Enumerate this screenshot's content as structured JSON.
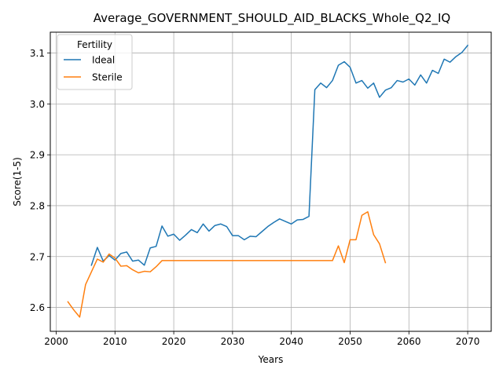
{
  "chart_data": {
    "type": "line",
    "title": "Average_GOVERNMENT_SHOULD_AID_BLACKS_Whole_Q2_IQ",
    "xlabel": "Years",
    "ylabel": "Score(1-5)",
    "xlim": [
      1999,
      2074
    ],
    "ylim": [
      2.553,
      3.141
    ],
    "xticks": [
      2000,
      2010,
      2020,
      2030,
      2040,
      2050,
      2060,
      2070
    ],
    "yticks": [
      2.6,
      2.7,
      2.8,
      2.9,
      3.0,
      3.1
    ],
    "xtick_labels": [
      "2000",
      "2010",
      "2020",
      "2030",
      "2040",
      "2050",
      "2060",
      "2070"
    ],
    "ytick_labels": [
      "2.6",
      "2.7",
      "2.8",
      "2.9",
      "3.0",
      "3.1"
    ],
    "grid": true,
    "legend": {
      "title": "Fertility",
      "placement": "top-left"
    },
    "series": [
      {
        "name": "Ideal",
        "color": "#1f77b4",
        "x": [
          2006,
          2007,
          2008,
          2009,
          2010,
          2011,
          2012,
          2013,
          2014,
          2015,
          2016,
          2017,
          2018,
          2019,
          2020,
          2021,
          2022,
          2023,
          2024,
          2025,
          2026,
          2027,
          2028,
          2029,
          2030,
          2031,
          2032,
          2033,
          2034,
          2035,
          2036,
          2037,
          2038,
          2039,
          2040,
          2041,
          2042,
          2043,
          2044,
          2045,
          2046,
          2047,
          2048,
          2049,
          2050,
          2051,
          2052,
          2053,
          2054,
          2055,
          2056,
          2057,
          2058,
          2059,
          2060,
          2061,
          2062,
          2063,
          2064,
          2065,
          2066,
          2067,
          2068,
          2069,
          2070
        ],
        "values": [
          2.683,
          2.718,
          2.691,
          2.702,
          2.693,
          2.706,
          2.709,
          2.691,
          2.693,
          2.683,
          2.717,
          2.72,
          2.76,
          2.74,
          2.744,
          2.732,
          2.742,
          2.753,
          2.747,
          2.764,
          2.75,
          2.761,
          2.764,
          2.759,
          2.741,
          2.741,
          2.733,
          2.74,
          2.739,
          2.749,
          2.759,
          2.767,
          2.774,
          2.769,
          2.764,
          2.772,
          2.773,
          2.779,
          3.028,
          3.041,
          3.032,
          3.046,
          3.076,
          3.083,
          3.072,
          3.041,
          3.046,
          3.031,
          3.041,
          3.013,
          3.027,
          3.032,
          3.046,
          3.043,
          3.049,
          3.037,
          3.057,
          3.041,
          3.066,
          3.06,
          3.088,
          3.082,
          3.093,
          3.101,
          3.115
        ]
      },
      {
        "name": "Sterile",
        "color": "#ff7f0e",
        "x": [
          2002,
          2003,
          2004,
          2005,
          2006,
          2007,
          2008,
          2009,
          2010,
          2011,
          2012,
          2013,
          2014,
          2015,
          2016,
          2017,
          2018,
          2019,
          2020,
          2021,
          2022,
          2023,
          2024,
          2025,
          2026,
          2027,
          2028,
          2029,
          2030,
          2031,
          2032,
          2033,
          2034,
          2035,
          2036,
          2037,
          2038,
          2039,
          2040,
          2041,
          2042,
          2043,
          2044,
          2045,
          2046,
          2047,
          2048,
          2049,
          2050,
          2051,
          2052,
          2053,
          2054,
          2055,
          2056
        ],
        "values": [
          2.611,
          2.595,
          2.581,
          2.645,
          2.67,
          2.695,
          2.689,
          2.705,
          2.697,
          2.681,
          2.682,
          2.674,
          2.668,
          2.671,
          2.67,
          2.68,
          2.692,
          2.692,
          2.692,
          2.692,
          2.692,
          2.692,
          2.692,
          2.692,
          2.692,
          2.692,
          2.692,
          2.692,
          2.692,
          2.692,
          2.692,
          2.692,
          2.692,
          2.692,
          2.692,
          2.692,
          2.692,
          2.692,
          2.692,
          2.692,
          2.692,
          2.692,
          2.692,
          2.692,
          2.692,
          2.692,
          2.721,
          2.688,
          2.733,
          2.733,
          2.781,
          2.788,
          2.743,
          2.725,
          2.688
        ]
      }
    ]
  }
}
